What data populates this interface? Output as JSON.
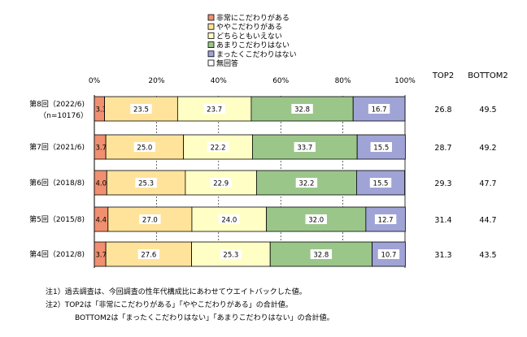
{
  "chart_data": {
    "type": "bar",
    "stacked": true,
    "orientation": "horizontal",
    "percent_axis_labels": [
      "0%",
      "20%",
      "40%",
      "60%",
      "80%",
      "100%"
    ],
    "xlim": [
      0,
      100
    ],
    "legend_position": "top",
    "series": [
      {
        "name": "非常にこだわりがある",
        "color": "#f09070",
        "values": [
          3.3,
          3.7,
          4.0,
          4.4,
          3.7
        ]
      },
      {
        "name": "ややこだわりがある",
        "color": "#ffe39b",
        "values": [
          23.5,
          25.0,
          25.3,
          27.0,
          27.6
        ]
      },
      {
        "name": "どちらともいえない",
        "color": "#ffffc5",
        "values": [
          23.7,
          22.2,
          22.9,
          24.0,
          25.3
        ]
      },
      {
        "name": "あまりこだわりはない",
        "color": "#9bc68a",
        "values": [
          32.8,
          33.7,
          32.2,
          32.0,
          32.8
        ]
      },
      {
        "name": "まったくこだわりはない",
        "color": "#9fa3d6",
        "values": [
          16.7,
          15.5,
          15.5,
          12.7,
          10.7
        ]
      },
      {
        "name": "無回答",
        "color": "#ffffff",
        "values": [
          0,
          0,
          0,
          0,
          0
        ]
      }
    ],
    "categories": [
      {
        "label": "第8回（2022/6)",
        "sub": "（n=10176）"
      },
      {
        "label": "第7回（2021/6)",
        "sub": ""
      },
      {
        "label": "第6回（2018/8)",
        "sub": ""
      },
      {
        "label": "第5回（2015/8)",
        "sub": ""
      },
      {
        "label": "第4回（2012/8)",
        "sub": ""
      }
    ],
    "summary_headers": [
      "TOP2",
      "BOTTOM2"
    ],
    "top2": [
      "26.8",
      "28.7",
      "29.3",
      "31.4",
      "31.3"
    ],
    "bottom2": [
      "49.5",
      "49.2",
      "47.7",
      "44.7",
      "43.5"
    ]
  },
  "notes": [
    "注1）過去調査は、今回調査の性年代構成比にあわせてウエイトバックした値。",
    "注2）TOP2は「非常にこだわりがある」「ややこだわりがある」の合計値。",
    "BOTTOM2は「まったくこだわりはない」「あまりこだわりはない」の合計値。"
  ]
}
